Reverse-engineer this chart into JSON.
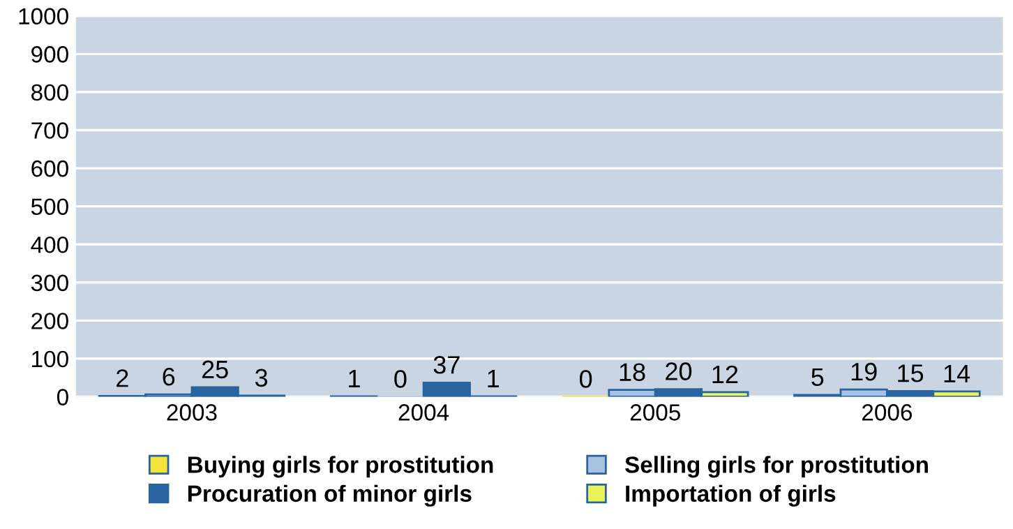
{
  "chart_data": {
    "type": "bar",
    "categories": [
      "2003",
      "2004",
      "2005",
      "2006"
    ],
    "series": [
      {
        "name": "Buying girls for prostitution",
        "color": "#f2e23a",
        "values": [
          2,
          1,
          0,
          5
        ]
      },
      {
        "name": "Selling girls for prostitution",
        "color": "#a9c1e0",
        "values": [
          6,
          0,
          18,
          19
        ]
      },
      {
        "name": "Procuration of minor girls",
        "color": "#2a64a0",
        "values": [
          25,
          37,
          20,
          15
        ]
      },
      {
        "name": "Importation of girls",
        "color": "#eaf25a",
        "values": [
          3,
          1,
          12,
          14
        ]
      }
    ],
    "ylim": [
      0,
      1000
    ],
    "yticks": [
      0,
      100,
      200,
      300,
      400,
      500,
      600,
      700,
      800,
      900,
      1000
    ],
    "grid": "y",
    "legend": "bottom",
    "data_labels": true
  }
}
